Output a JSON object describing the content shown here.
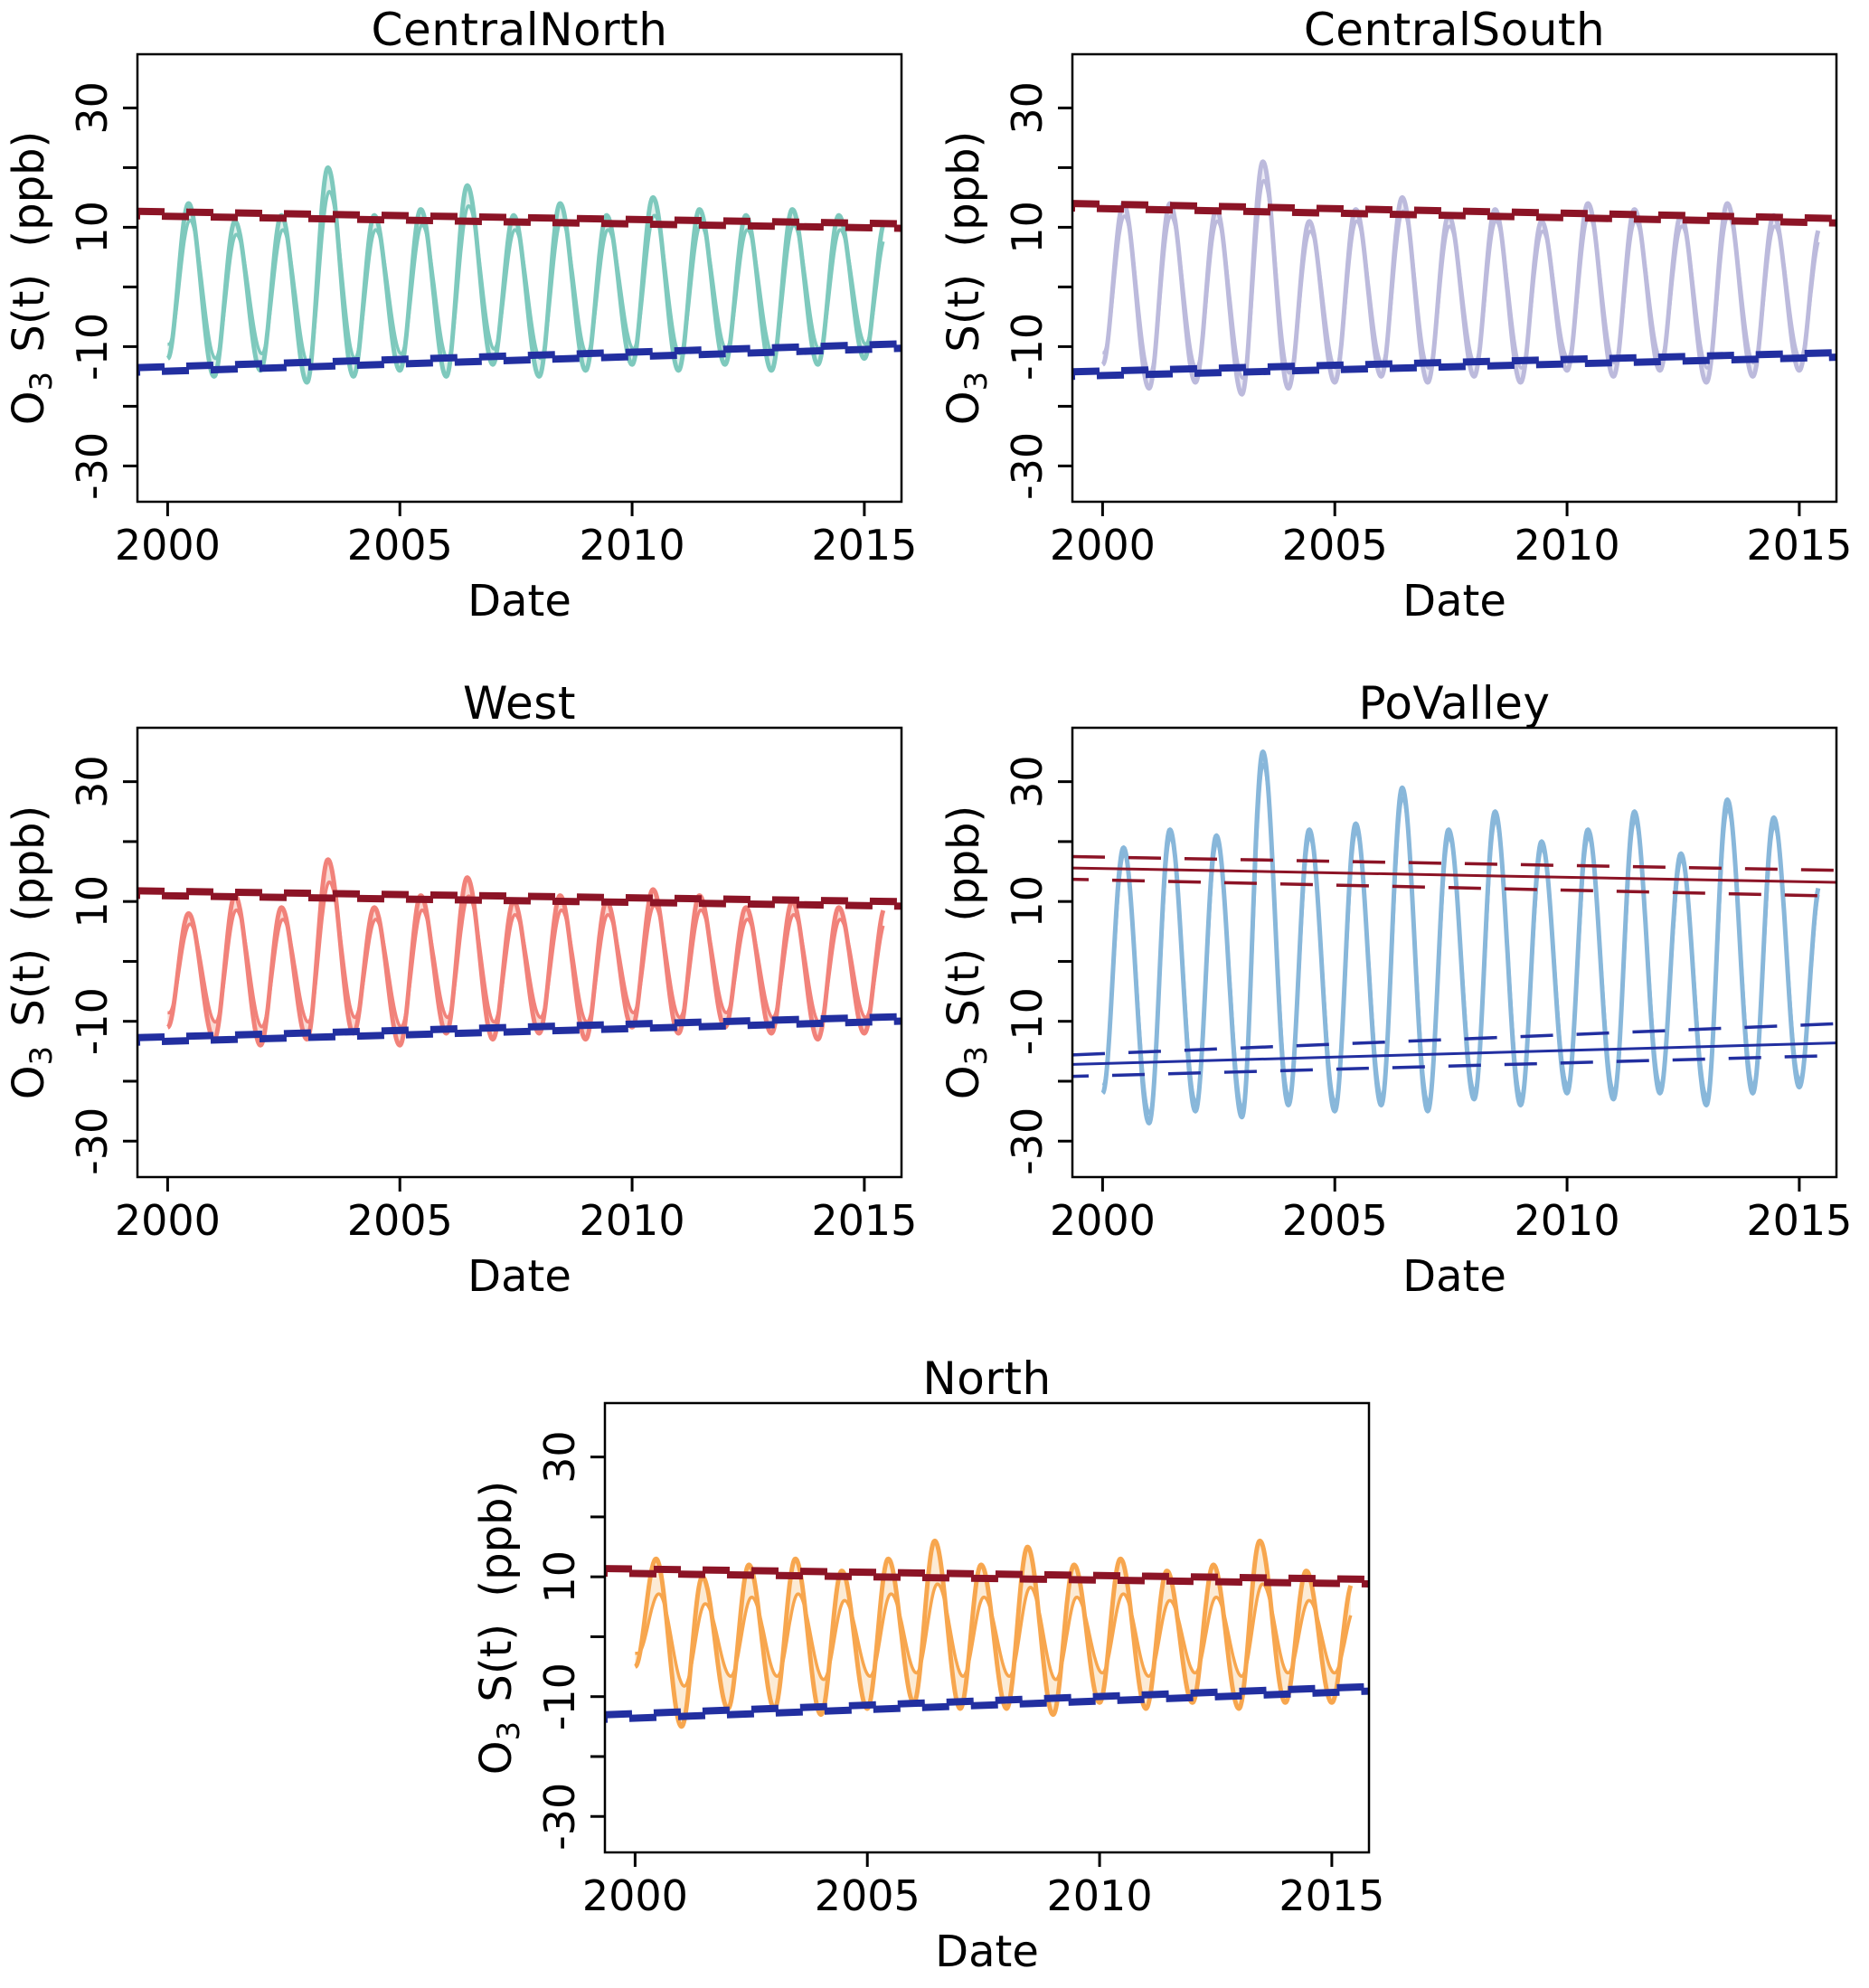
{
  "figure": {
    "background": "#ffffff",
    "axis_color": "#000000",
    "trend_upper_color": "#8C1426",
    "trend_lower_color": "#222FA0"
  },
  "chart_data": [
    {
      "type": "line",
      "title": "CentralNorth",
      "xlabel": "Date",
      "ylabel": "O3 S(t) (ppb)",
      "ylabel_parts": [
        {
          "t": "O"
        },
        {
          "t": "3",
          "sub": true
        },
        {
          "t": " S(t)",
          "dx": 6
        },
        {
          "t": " (ppb)",
          "dx": 14
        }
      ],
      "xticks": [
        2000,
        2005,
        2010,
        2015
      ],
      "yticks_labeled": [
        -30,
        -10,
        10,
        30
      ],
      "yticks_minor": [
        -20,
        0,
        20
      ],
      "xlim": [
        1999.35,
        2015.8
      ],
      "ylim": [
        -36,
        39
      ],
      "grid": false,
      "legend": "none",
      "line_color": "#7EC9BD",
      "fill_color": "#DCF0EB",
      "years_start": 2000,
      "peak_phase": 0.45,
      "series_end": 2015.42,
      "peaks": [
        14,
        11,
        12,
        20,
        12,
        13,
        17,
        12,
        14,
        12,
        15,
        13,
        12,
        13,
        12,
        11
      ],
      "troughs": [
        -12,
        -15,
        -14,
        -16,
        -15,
        -14,
        -15,
        -13,
        -15,
        -14,
        -13,
        -14,
        -13,
        -14,
        -13,
        -12
      ],
      "inner_scale": 0.8,
      "inner_phase": 0.03,
      "trend_upper": {
        "style": "hug",
        "solid": [
          12.3,
          10.2
        ],
        "dash_hi": [
          12.75,
          10.65
        ],
        "dash_lo": [
          11.85,
          9.75
        ]
      },
      "trend_lower": {
        "style": "hug",
        "solid": [
          -13.9,
          -9.9
        ],
        "dash_hi": [
          -13.45,
          -9.45
        ],
        "dash_lo": [
          -14.35,
          -10.35
        ]
      }
    },
    {
      "type": "line",
      "title": "CentralSouth",
      "xlabel": "Date",
      "ylabel": "O3 S(t) (ppb)",
      "ylabel_parts": [
        {
          "t": "O"
        },
        {
          "t": "3",
          "sub": true
        },
        {
          "t": " S(t)",
          "dx": 6
        },
        {
          "t": " (ppb)",
          "dx": 14
        }
      ],
      "xticks": [
        2000,
        2005,
        2010,
        2015
      ],
      "yticks_labeled": [
        -30,
        -10,
        10,
        30
      ],
      "yticks_minor": [
        -20,
        0,
        20
      ],
      "xlim": [
        1999.35,
        2015.8
      ],
      "ylim": [
        -36,
        39
      ],
      "grid": false,
      "legend": "none",
      "line_color": "#BCBADC",
      "fill_color": "#E9E8F4",
      "years_start": 2000,
      "peak_phase": 0.45,
      "series_end": 2015.42,
      "peaks": [
        14,
        14,
        13,
        21,
        11,
        13,
        15,
        12,
        13,
        11,
        14,
        13,
        12,
        14,
        12,
        10
      ],
      "troughs": [
        -13,
        -17,
        -16,
        -18,
        -17,
        -16,
        -15,
        -16,
        -15,
        -16,
        -14,
        -15,
        -14,
        -16,
        -15,
        -14
      ],
      "inner_scale": 0.85,
      "inner_phase": 0.02,
      "trend_upper": {
        "style": "hug",
        "solid": [
          13.6,
          11.1
        ],
        "dash_hi": [
          14.05,
          11.55
        ],
        "dash_lo": [
          13.15,
          10.65
        ]
      },
      "trend_lower": {
        "style": "hug",
        "solid": [
          -14.6,
          -11.4
        ],
        "dash_hi": [
          -14.15,
          -10.95
        ],
        "dash_lo": [
          -15.05,
          -11.85
        ]
      }
    },
    {
      "type": "line",
      "title": "West",
      "xlabel": "Date",
      "ylabel": "O3 S(t) (ppb)",
      "ylabel_parts": [
        {
          "t": "O"
        },
        {
          "t": "3",
          "sub": true
        },
        {
          "t": " S(t)",
          "dx": 6
        },
        {
          "t": " (ppb)",
          "dx": 14
        }
      ],
      "xticks": [
        2000,
        2005,
        2010,
        2015
      ],
      "yticks_labeled": [
        -30,
        -10,
        10,
        30
      ],
      "yticks_minor": [
        -20,
        0,
        20
      ],
      "xlim": [
        1999.35,
        2015.8
      ],
      "ylim": [
        -36,
        39
      ],
      "grid": false,
      "legend": "none",
      "line_color": "#F1827A",
      "fill_color": "#FAD3CC",
      "years_start": 2000,
      "peak_phase": 0.45,
      "series_end": 2015.42,
      "peaks": [
        8,
        11,
        9,
        17,
        9,
        11,
        14,
        10,
        11,
        10,
        12,
        11,
        9,
        10,
        9,
        9
      ],
      "troughs": [
        -11,
        -13,
        -14,
        -13,
        -12,
        -14,
        -12,
        -13,
        -12,
        -13,
        -11,
        -12,
        -11,
        -12,
        -13,
        -12
      ],
      "inner_scale": 0.78,
      "inner_phase": 0.03,
      "trend_upper": {
        "style": "hug",
        "solid": [
          11.4,
          9.6
        ],
        "dash_hi": [
          11.85,
          10.05
        ],
        "dash_lo": [
          10.95,
          9.15
        ]
      },
      "trend_lower": {
        "style": "hug",
        "solid": [
          -13.1,
          -9.6
        ],
        "dash_hi": [
          -12.65,
          -9.15
        ],
        "dash_lo": [
          -13.55,
          -10.05
        ]
      }
    },
    {
      "type": "line",
      "title": "PoValley",
      "xlabel": "Date",
      "ylabel": "O3 S(t) (ppb)",
      "ylabel_parts": [
        {
          "t": "O"
        },
        {
          "t": "3",
          "sub": true
        },
        {
          "t": " S(t)",
          "dx": 6
        },
        {
          "t": " (ppb)",
          "dx": 14
        }
      ],
      "xticks": [
        2000,
        2005,
        2010,
        2015
      ],
      "yticks_labeled": [
        -30,
        -10,
        10,
        30
      ],
      "yticks_minor": [
        -20,
        0,
        20
      ],
      "xlim": [
        1999.35,
        2015.8
      ],
      "ylim": [
        -36,
        39
      ],
      "grid": false,
      "legend": "none",
      "line_color": "#88B7DA",
      "fill_color": "#CCE0EF",
      "years_start": 2000,
      "peak_phase": 0.45,
      "series_end": 2015.42,
      "peaks": [
        19,
        22,
        21,
        35,
        22,
        23,
        29,
        22,
        25,
        20,
        22,
        25,
        18,
        27,
        24,
        13
      ],
      "troughs": [
        -22,
        -27,
        -25,
        -26,
        -24,
        -25,
        -24,
        -25,
        -23,
        -24,
        -22,
        -23,
        -22,
        -24,
        -22,
        -21
      ],
      "inner_scale": 0.94,
      "inner_phase": 0.01,
      "trend_upper": {
        "style": "wide",
        "solid": [
          15.6,
          13.2
        ],
        "dash_hi": [
          17.5,
          15.2
        ],
        "dash_lo": [
          13.7,
          10.9
        ]
      },
      "trend_lower": {
        "style": "wide",
        "solid": [
          -17.2,
          -13.6
        ],
        "dash_hi": [
          -15.6,
          -10.4
        ],
        "dash_lo": [
          -19.2,
          -15.7
        ]
      }
    },
    {
      "type": "line",
      "title": "North",
      "xlabel": "Date",
      "ylabel": "O3 S(t) (ppb)",
      "ylabel_parts": [
        {
          "t": "O"
        },
        {
          "t": "3",
          "sub": true
        },
        {
          "t": " S(t)",
          "dx": 6
        },
        {
          "t": " (ppb)",
          "dx": 14
        }
      ],
      "xticks": [
        2000,
        2005,
        2010,
        2015
      ],
      "yticks_labeled": [
        -30,
        -10,
        10,
        30
      ],
      "yticks_minor": [
        -20,
        0,
        20
      ],
      "xlim": [
        1999.35,
        2015.8
      ],
      "ylim": [
        -36,
        39
      ],
      "grid": false,
      "legend": "none",
      "line_color": "#F7A64E",
      "fill_color": "#FBE8CE",
      "years_start": 2000,
      "peak_phase": 0.45,
      "series_end": 2015.42,
      "peaks": [
        13,
        10,
        12,
        13,
        11,
        13,
        16,
        12,
        15,
        12,
        13,
        11,
        12,
        16,
        11,
        9
      ],
      "troughs": [
        -5,
        -15,
        -12,
        -12,
        -13,
        -12,
        -11,
        -12,
        -12,
        -13,
        -11,
        -12,
        -11,
        -12,
        -11,
        -11
      ],
      "inner_scale": 0.55,
      "inner_phase": 0.06,
      "trend_upper": {
        "style": "hug",
        "solid": [
          11.0,
          9.2
        ],
        "dash_hi": [
          11.45,
          9.65
        ],
        "dash_lo": [
          10.55,
          8.75
        ]
      },
      "trend_lower": {
        "style": "hug",
        "solid": [
          -13.4,
          -8.7
        ],
        "dash_hi": [
          -12.95,
          -8.25
        ],
        "dash_lo": [
          -13.85,
          -9.15
        ]
      }
    }
  ]
}
